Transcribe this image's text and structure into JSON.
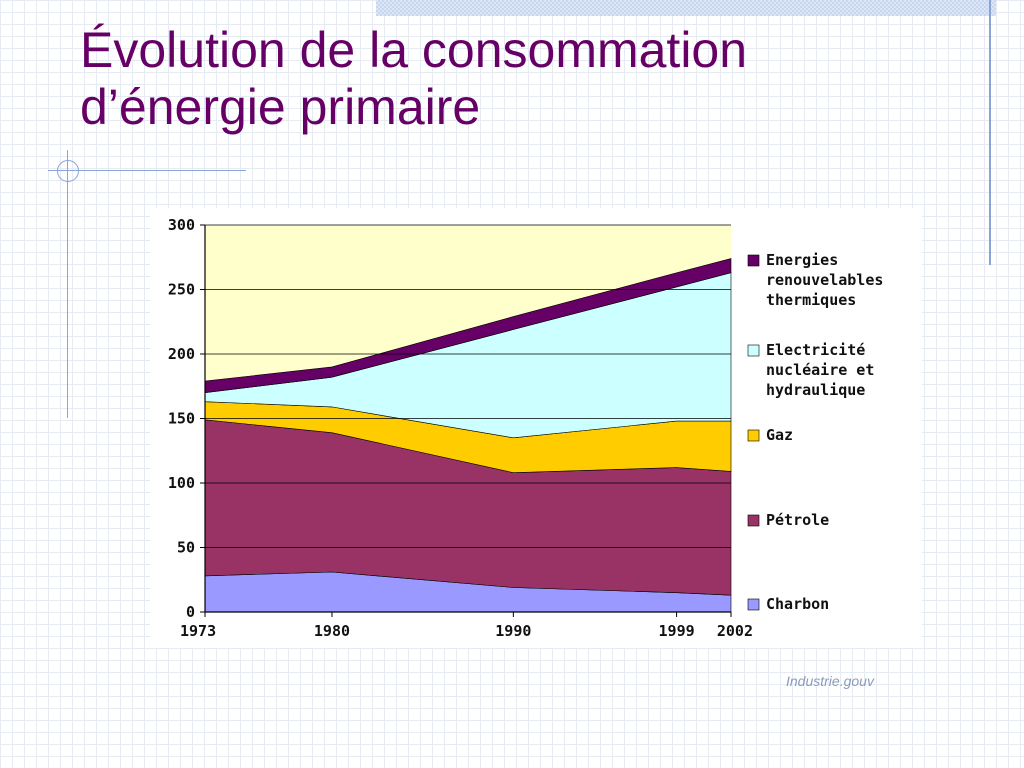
{
  "slide": {
    "title_line1": "Évolution de la consommation",
    "title_line2": "d’énergie primaire",
    "source": "Industrie.gouv"
  },
  "colors": {
    "title": "#660066",
    "accent_lines": "#8aa4d8"
  },
  "chart_data": {
    "type": "area",
    "stacked": true,
    "x": [
      1973,
      1980,
      1990,
      1999,
      2002
    ],
    "ylim": [
      0,
      300
    ],
    "yticks": [
      0,
      50,
      100,
      150,
      200,
      250,
      300
    ],
    "grid": "horizontal",
    "legend_position": "right",
    "series": [
      {
        "name": "Charbon",
        "color": "#9999ff",
        "values": [
          28,
          31,
          19,
          15,
          13
        ]
      },
      {
        "name": "Pétrole",
        "color": "#993366",
        "values": [
          121,
          108,
          89,
          97,
          96
        ]
      },
      {
        "name": "Gaz",
        "color": "#ffcc00",
        "values": [
          14,
          20,
          27,
          36,
          39
        ]
      },
      {
        "name": "Electricité\nnucléaire et\nhydraulique",
        "color": "#ccffff",
        "values": [
          7,
          23,
          84,
          104,
          115
        ]
      },
      {
        "name": "Energies\nrenouvelables\nthermiques",
        "color": "#660066",
        "values": [
          9,
          8,
          10,
          11,
          11
        ]
      }
    ],
    "background_color": "#ffffcc"
  }
}
